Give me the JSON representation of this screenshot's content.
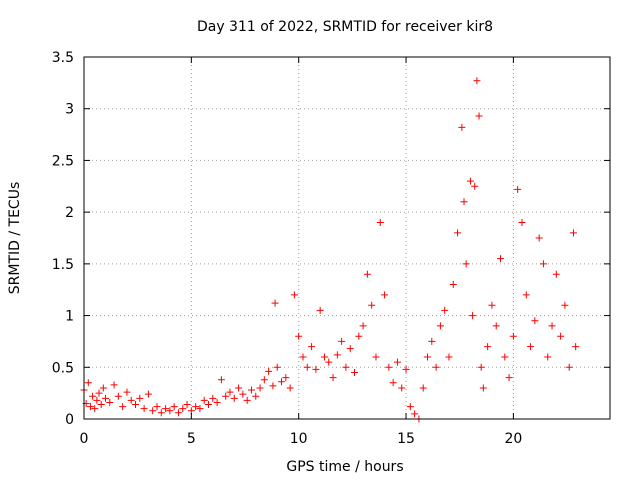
{
  "chart_data": {
    "type": "scatter",
    "title": "Day 311 of 2022, SRMTID for receiver kir8",
    "xlabel": "GPS time / hours",
    "ylabel": "SRMTID / TECUs",
    "xlim": [
      0,
      24.5
    ],
    "ylim": [
      0,
      3.5
    ],
    "xticks": [
      0,
      5,
      10,
      15,
      20
    ],
    "yticks": [
      0,
      0.5,
      1,
      1.5,
      2,
      2.5,
      3,
      3.5
    ],
    "xtick_labels": [
      "0",
      "5",
      "10",
      "15",
      "20"
    ],
    "ytick_labels": [
      "0",
      "0.5",
      "1",
      "1.5",
      "2",
      "2.5",
      "3",
      "3.5"
    ],
    "grid": true,
    "marker": "+",
    "color": "#ff0000",
    "series": [
      {
        "name": "SRMTID",
        "points": [
          [
            0.0,
            0.28
          ],
          [
            0.1,
            0.15
          ],
          [
            0.2,
            0.35
          ],
          [
            0.3,
            0.12
          ],
          [
            0.4,
            0.22
          ],
          [
            0.5,
            0.1
          ],
          [
            0.6,
            0.18
          ],
          [
            0.7,
            0.25
          ],
          [
            0.8,
            0.14
          ],
          [
            0.9,
            0.3
          ],
          [
            1.0,
            0.2
          ],
          [
            1.2,
            0.16
          ],
          [
            1.4,
            0.33
          ],
          [
            1.6,
            0.22
          ],
          [
            1.8,
            0.12
          ],
          [
            2.0,
            0.26
          ],
          [
            2.2,
            0.18
          ],
          [
            2.4,
            0.14
          ],
          [
            2.6,
            0.2
          ],
          [
            2.8,
            0.1
          ],
          [
            3.0,
            0.24
          ],
          [
            3.2,
            0.08
          ],
          [
            3.4,
            0.12
          ],
          [
            3.6,
            0.06
          ],
          [
            3.8,
            0.1
          ],
          [
            4.0,
            0.08
          ],
          [
            4.2,
            0.12
          ],
          [
            4.4,
            0.06
          ],
          [
            4.6,
            0.1
          ],
          [
            4.8,
            0.14
          ],
          [
            5.0,
            0.08
          ],
          [
            5.2,
            0.12
          ],
          [
            5.4,
            0.1
          ],
          [
            5.6,
            0.18
          ],
          [
            5.8,
            0.14
          ],
          [
            6.0,
            0.2
          ],
          [
            6.2,
            0.16
          ],
          [
            6.4,
            0.38
          ],
          [
            6.6,
            0.22
          ],
          [
            6.8,
            0.26
          ],
          [
            7.0,
            0.2
          ],
          [
            7.2,
            0.3
          ],
          [
            7.4,
            0.24
          ],
          [
            7.6,
            0.18
          ],
          [
            7.8,
            0.28
          ],
          [
            8.0,
            0.22
          ],
          [
            8.2,
            0.3
          ],
          [
            8.4,
            0.38
          ],
          [
            8.6,
            0.46
          ],
          [
            8.8,
            0.32
          ],
          [
            8.9,
            1.12
          ],
          [
            9.0,
            0.5
          ],
          [
            9.2,
            0.36
          ],
          [
            9.4,
            0.4
          ],
          [
            9.6,
            0.3
          ],
          [
            9.8,
            1.2
          ],
          [
            10.0,
            0.8
          ],
          [
            10.2,
            0.6
          ],
          [
            10.4,
            0.5
          ],
          [
            10.6,
            0.7
          ],
          [
            10.8,
            0.48
          ],
          [
            11.0,
            1.05
          ],
          [
            11.2,
            0.6
          ],
          [
            11.4,
            0.55
          ],
          [
            11.6,
            0.4
          ],
          [
            11.8,
            0.62
          ],
          [
            12.0,
            0.75
          ],
          [
            12.2,
            0.5
          ],
          [
            12.4,
            0.68
          ],
          [
            12.6,
            0.45
          ],
          [
            12.8,
            0.8
          ],
          [
            13.0,
            0.9
          ],
          [
            13.2,
            1.4
          ],
          [
            13.4,
            1.1
          ],
          [
            13.6,
            0.6
          ],
          [
            13.8,
            1.9
          ],
          [
            14.0,
            1.2
          ],
          [
            14.2,
            0.5
          ],
          [
            14.4,
            0.35
          ],
          [
            14.6,
            0.55
          ],
          [
            14.8,
            0.3
          ],
          [
            15.0,
            0.48
          ],
          [
            15.2,
            0.12
          ],
          [
            15.4,
            0.05
          ],
          [
            15.6,
            0.0
          ],
          [
            15.8,
            0.3
          ],
          [
            16.0,
            0.6
          ],
          [
            16.2,
            0.75
          ],
          [
            16.4,
            0.5
          ],
          [
            16.6,
            0.9
          ],
          [
            16.8,
            1.05
          ],
          [
            17.0,
            0.6
          ],
          [
            17.2,
            1.3
          ],
          [
            17.4,
            1.8
          ],
          [
            17.6,
            2.82
          ],
          [
            17.7,
            2.1
          ],
          [
            17.8,
            1.5
          ],
          [
            18.0,
            2.3
          ],
          [
            18.1,
            1.0
          ],
          [
            18.2,
            2.25
          ],
          [
            18.3,
            3.27
          ],
          [
            18.4,
            2.93
          ],
          [
            18.5,
            0.5
          ],
          [
            18.6,
            0.3
          ],
          [
            18.8,
            0.7
          ],
          [
            19.0,
            1.1
          ],
          [
            19.2,
            0.9
          ],
          [
            19.4,
            1.55
          ],
          [
            19.6,
            0.6
          ],
          [
            19.8,
            0.4
          ],
          [
            20.0,
            0.8
          ],
          [
            20.2,
            2.22
          ],
          [
            20.4,
            1.9
          ],
          [
            20.6,
            1.2
          ],
          [
            20.8,
            0.7
          ],
          [
            21.0,
            0.95
          ],
          [
            21.2,
            1.75
          ],
          [
            21.4,
            1.5
          ],
          [
            21.6,
            0.6
          ],
          [
            21.8,
            0.9
          ],
          [
            22.0,
            1.4
          ],
          [
            22.2,
            0.8
          ],
          [
            22.4,
            1.1
          ],
          [
            22.6,
            0.5
          ],
          [
            22.8,
            1.8
          ],
          [
            22.9,
            0.7
          ]
        ]
      }
    ]
  }
}
